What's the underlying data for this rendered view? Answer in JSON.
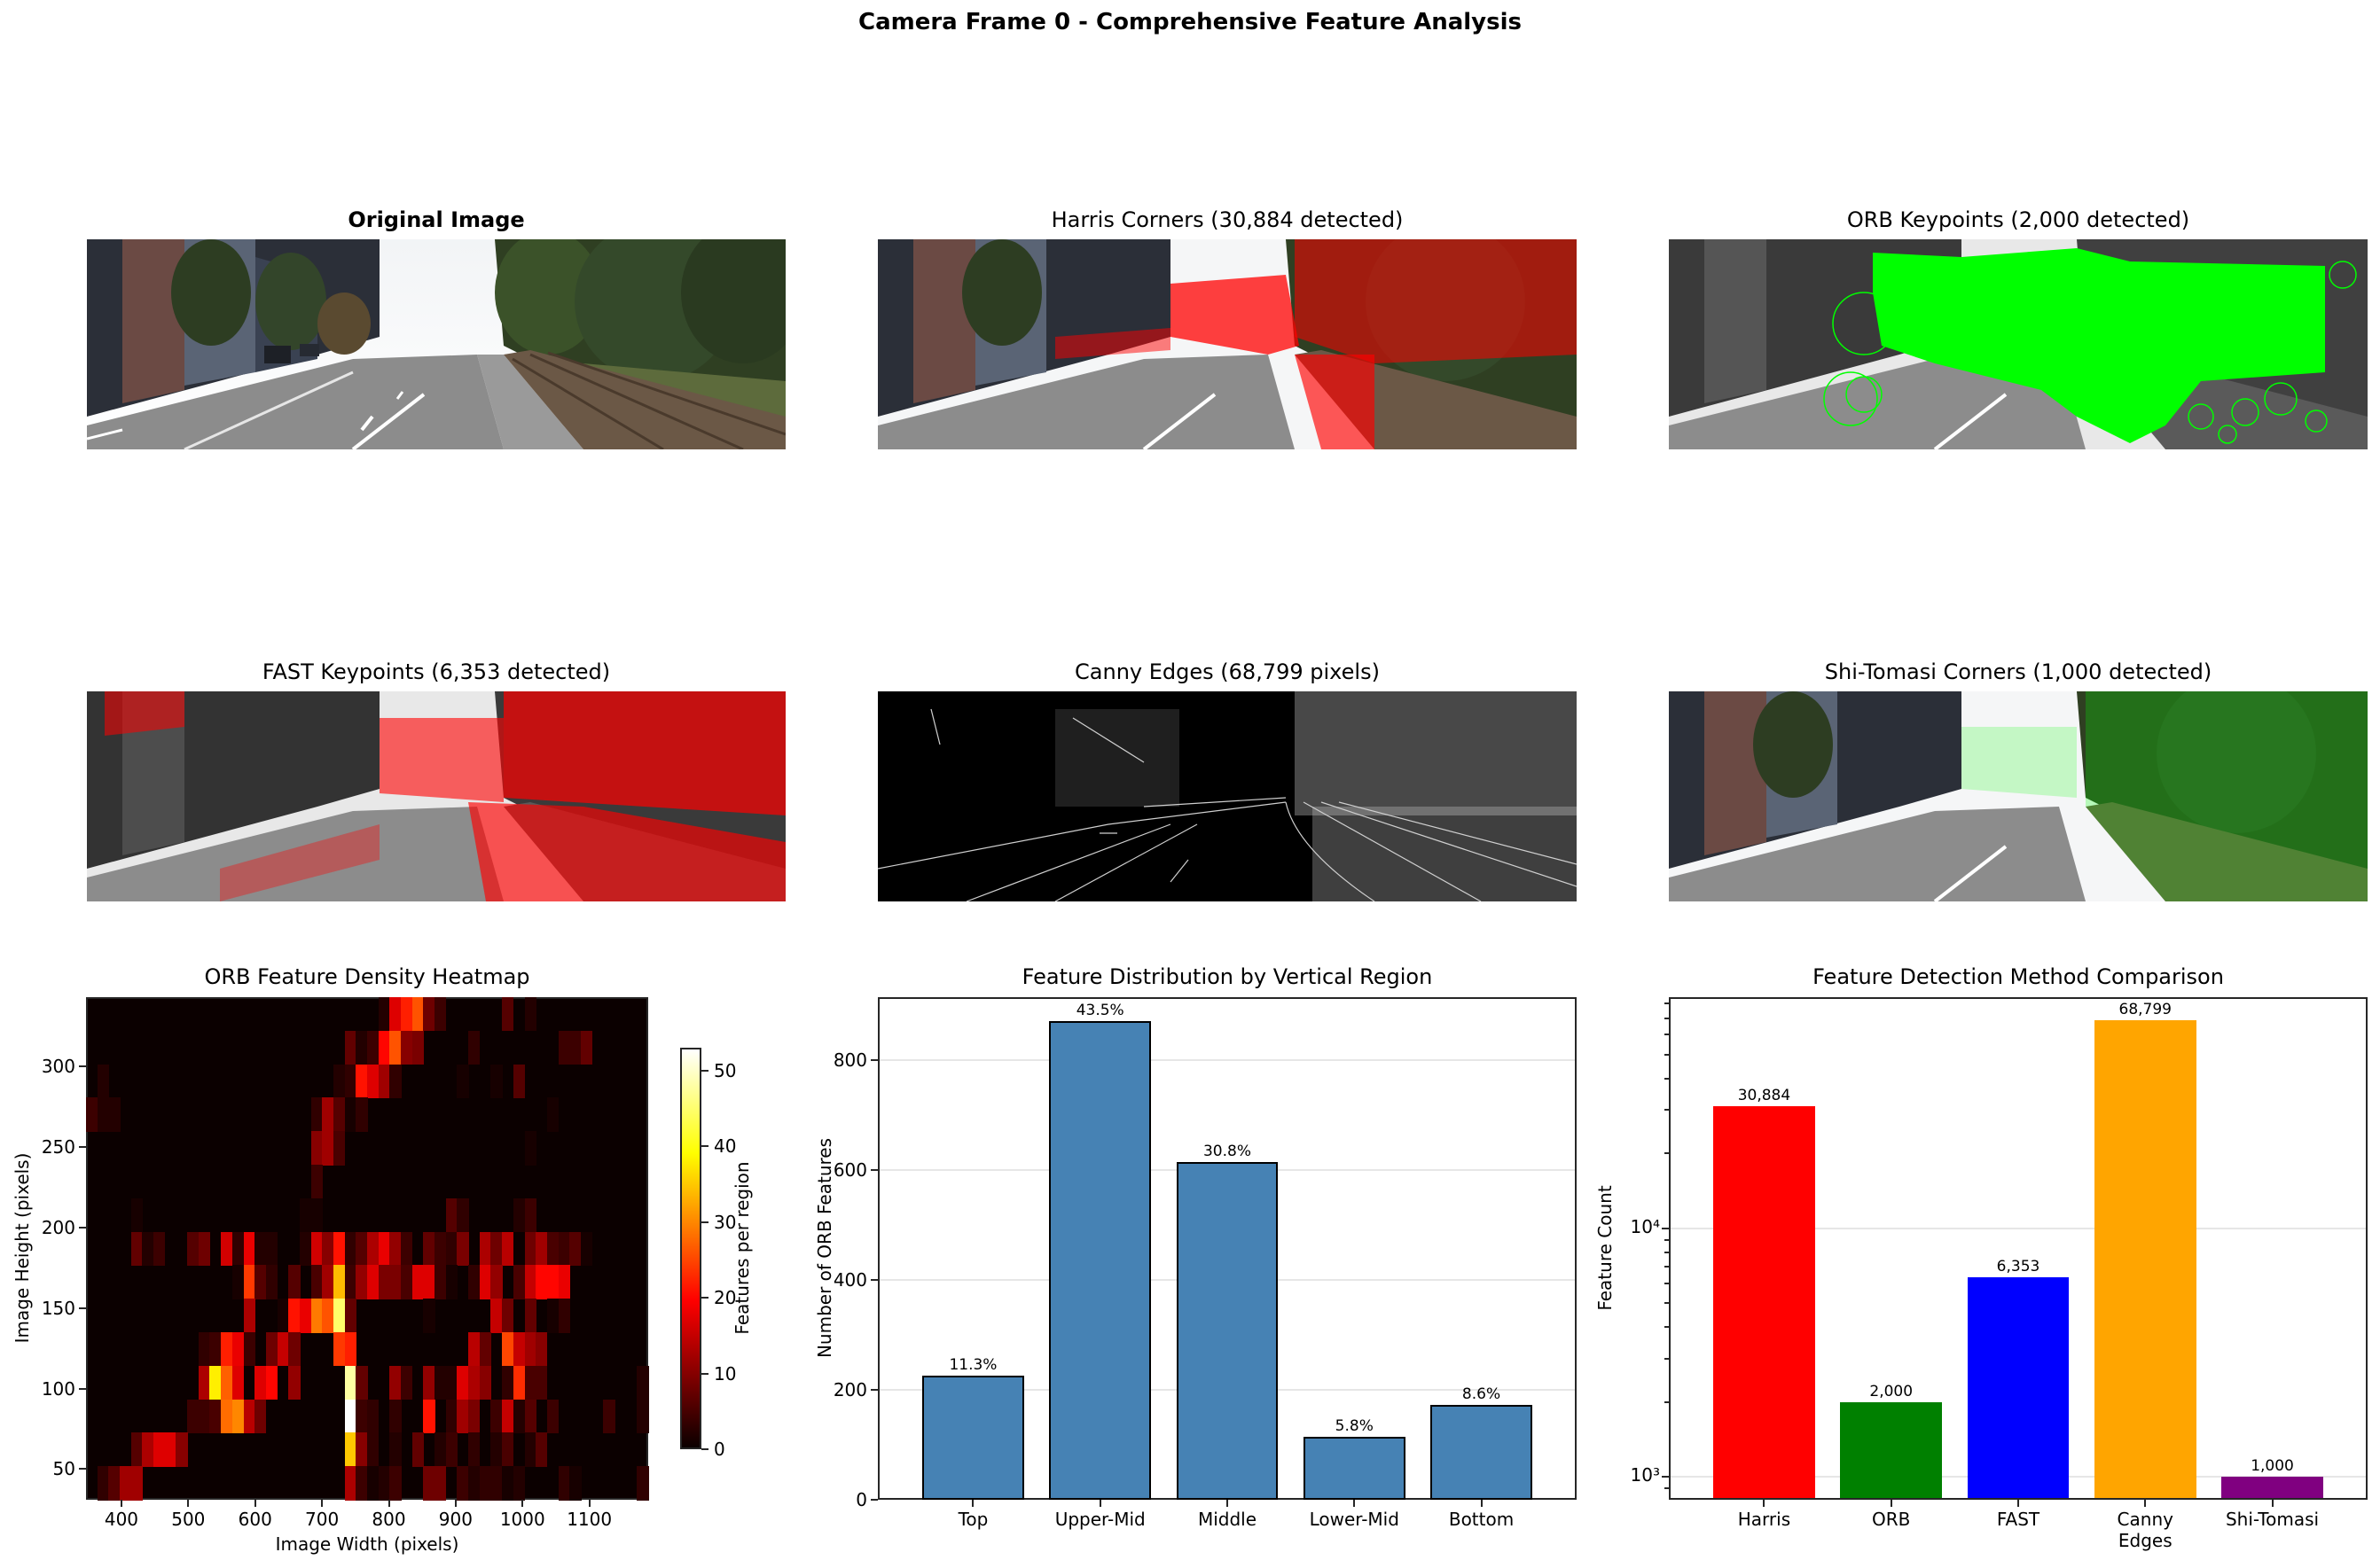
{
  "figure": {
    "suptitle": "Camera Frame 0 - Comprehensive Feature Analysis"
  },
  "image_panels": [
    {
      "title": "Original Image",
      "bold": true,
      "kind": "original"
    },
    {
      "title": "Harris Corners (30,884 detected)",
      "bold": false,
      "kind": "harris",
      "marker_color": "#ff0000"
    },
    {
      "title": "ORB Keypoints (2,000 detected)",
      "bold": false,
      "kind": "orb",
      "marker_color": "#00ff00"
    },
    {
      "title": "FAST Keypoints (6,353 detected)",
      "bold": false,
      "kind": "fast",
      "marker_color": "#ff0000"
    },
    {
      "title": "Canny Edges (68,799 pixels)",
      "bold": false,
      "kind": "canny",
      "marker_color": "#ffffff"
    },
    {
      "title": "Shi-Tomasi Corners (1,000 detected)",
      "bold": false,
      "kind": "shitomasi",
      "marker_color": "#00ff00"
    }
  ],
  "chart_data": [
    {
      "type": "heatmap",
      "title": "ORB Feature Density Heatmap",
      "xlabel": "Image Width (pixels)",
      "ylabel": "Image Height (pixels)",
      "xlim": [
        347,
        1188
      ],
      "ylim": [
        31,
        343
      ],
      "xticks": [
        400,
        500,
        600,
        700,
        800,
        900,
        1000,
        1100
      ],
      "yticks": [
        50,
        100,
        150,
        200,
        250,
        300
      ],
      "colormap": "hot",
      "colorbar": {
        "label": "Features per region",
        "ticks": [
          0,
          10,
          20,
          30,
          40,
          50
        ],
        "vmin": 0,
        "vmax": 53
      },
      "grid_shape": [
        15,
        50
      ],
      "cells_note": "rows top-to-bottom, sparse [row, col, value]",
      "cells": [
        [
          0,
          26,
          2
        ],
        [
          0,
          27,
          17
        ],
        [
          0,
          28,
          22
        ],
        [
          0,
          29,
          26
        ],
        [
          0,
          30,
          8
        ],
        [
          0,
          31,
          4
        ],
        [
          0,
          37,
          6
        ],
        [
          0,
          39,
          2
        ],
        [
          1,
          23,
          7
        ],
        [
          1,
          24,
          2
        ],
        [
          1,
          25,
          4
        ],
        [
          1,
          26,
          20
        ],
        [
          1,
          27,
          26
        ],
        [
          1,
          28,
          10
        ],
        [
          1,
          29,
          9
        ],
        [
          1,
          34,
          3
        ],
        [
          1,
          42,
          4
        ],
        [
          1,
          43,
          4
        ],
        [
          1,
          44,
          7
        ],
        [
          2,
          1,
          2
        ],
        [
          2,
          22,
          2
        ],
        [
          2,
          23,
          3
        ],
        [
          2,
          24,
          21
        ],
        [
          2,
          25,
          17
        ],
        [
          2,
          26,
          12
        ],
        [
          2,
          27,
          3
        ],
        [
          2,
          33,
          1
        ],
        [
          2,
          36,
          1
        ],
        [
          2,
          38,
          6
        ],
        [
          3,
          0,
          4
        ],
        [
          3,
          1,
          2
        ],
        [
          3,
          2,
          2
        ],
        [
          3,
          20,
          3
        ],
        [
          3,
          21,
          12
        ],
        [
          3,
          22,
          6
        ],
        [
          3,
          23,
          1
        ],
        [
          3,
          24,
          3
        ],
        [
          3,
          41,
          1
        ],
        [
          4,
          20,
          10
        ],
        [
          4,
          21,
          12
        ],
        [
          4,
          22,
          5
        ],
        [
          4,
          39,
          1
        ],
        [
          5,
          20,
          4
        ],
        [
          6,
          4,
          1
        ],
        [
          6,
          19,
          1
        ],
        [
          6,
          20,
          1
        ],
        [
          6,
          32,
          6
        ],
        [
          6,
          33,
          3
        ],
        [
          6,
          38,
          2
        ],
        [
          6,
          39,
          4
        ],
        [
          7,
          4,
          7
        ],
        [
          7,
          5,
          2
        ],
        [
          7,
          6,
          4
        ],
        [
          7,
          9,
          6
        ],
        [
          7,
          10,
          8
        ],
        [
          7,
          12,
          16
        ],
        [
          7,
          13,
          3
        ],
        [
          7,
          14,
          18
        ],
        [
          7,
          15,
          2
        ],
        [
          7,
          16,
          2
        ],
        [
          7,
          19,
          2
        ],
        [
          7,
          20,
          16
        ],
        [
          7,
          21,
          10
        ],
        [
          7,
          22,
          21
        ],
        [
          7,
          23,
          3
        ],
        [
          7,
          24,
          6
        ],
        [
          7,
          25,
          13
        ],
        [
          7,
          26,
          18
        ],
        [
          7,
          27,
          11
        ],
        [
          7,
          28,
          4
        ],
        [
          7,
          30,
          7
        ],
        [
          7,
          31,
          4
        ],
        [
          7,
          32,
          3
        ],
        [
          7,
          33,
          9
        ],
        [
          7,
          35,
          13
        ],
        [
          7,
          36,
          8
        ],
        [
          7,
          37,
          14
        ],
        [
          7,
          39,
          8
        ],
        [
          7,
          40,
          12
        ],
        [
          7,
          41,
          5
        ],
        [
          7,
          42,
          4
        ],
        [
          7,
          43,
          6
        ],
        [
          7,
          44,
          1
        ],
        [
          8,
          13,
          1
        ],
        [
          8,
          14,
          24
        ],
        [
          8,
          15,
          6
        ],
        [
          8,
          16,
          3
        ],
        [
          8,
          18,
          6
        ],
        [
          8,
          20,
          5
        ],
        [
          8,
          21,
          12
        ],
        [
          8,
          22,
          34
        ],
        [
          8,
          23,
          4
        ],
        [
          8,
          24,
          11
        ],
        [
          8,
          25,
          17
        ],
        [
          8,
          26,
          9
        ],
        [
          8,
          27,
          9
        ],
        [
          8,
          28,
          5
        ],
        [
          8,
          29,
          17
        ],
        [
          8,
          30,
          17
        ],
        [
          8,
          31,
          4
        ],
        [
          8,
          32,
          1
        ],
        [
          8,
          34,
          3
        ],
        [
          8,
          35,
          17
        ],
        [
          8,
          36,
          11
        ],
        [
          8,
          38,
          5
        ],
        [
          8,
          39,
          15
        ],
        [
          8,
          40,
          20
        ],
        [
          8,
          41,
          20
        ],
        [
          8,
          42,
          18
        ],
        [
          9,
          14,
          13
        ],
        [
          9,
          17,
          1
        ],
        [
          9,
          18,
          21
        ],
        [
          9,
          19,
          18
        ],
        [
          9,
          20,
          29
        ],
        [
          9,
          21,
          26
        ],
        [
          9,
          22,
          45
        ],
        [
          9,
          23,
          7
        ],
        [
          9,
          30,
          1
        ],
        [
          9,
          36,
          15
        ],
        [
          9,
          37,
          8
        ],
        [
          9,
          39,
          7
        ],
        [
          9,
          41,
          1
        ],
        [
          9,
          42,
          3
        ],
        [
          10,
          10,
          3
        ],
        [
          10,
          11,
          4
        ],
        [
          10,
          12,
          22
        ],
        [
          10,
          13,
          18
        ],
        [
          10,
          14,
          4
        ],
        [
          10,
          16,
          8
        ],
        [
          10,
          17,
          15
        ],
        [
          10,
          18,
          8
        ],
        [
          10,
          22,
          24
        ],
        [
          10,
          23,
          22
        ],
        [
          10,
          34,
          14
        ],
        [
          10,
          35,
          7
        ],
        [
          10,
          37,
          25
        ],
        [
          10,
          38,
          15
        ],
        [
          10,
          39,
          12
        ],
        [
          10,
          40,
          10
        ],
        [
          11,
          10,
          13
        ],
        [
          11,
          11,
          38
        ],
        [
          11,
          12,
          27
        ],
        [
          11,
          13,
          17
        ],
        [
          11,
          15,
          17
        ],
        [
          11,
          16,
          20
        ],
        [
          11,
          18,
          11
        ],
        [
          11,
          23,
          48
        ],
        [
          11,
          24,
          7
        ],
        [
          11,
          27,
          11
        ],
        [
          11,
          28,
          4
        ],
        [
          11,
          30,
          11
        ],
        [
          11,
          31,
          2
        ],
        [
          11,
          32,
          2
        ],
        [
          11,
          33,
          17
        ],
        [
          11,
          34,
          13
        ],
        [
          11,
          35,
          10
        ],
        [
          11,
          37,
          3
        ],
        [
          11,
          38,
          23
        ],
        [
          11,
          39,
          5
        ],
        [
          11,
          40,
          5
        ],
        [
          11,
          49,
          2
        ],
        [
          12,
          9,
          4
        ],
        [
          12,
          10,
          4
        ],
        [
          12,
          11,
          5
        ],
        [
          12,
          12,
          28
        ],
        [
          12,
          13,
          30
        ],
        [
          12,
          14,
          14
        ],
        [
          12,
          15,
          8
        ],
        [
          12,
          23,
          53
        ],
        [
          12,
          24,
          4
        ],
        [
          12,
          25,
          3
        ],
        [
          12,
          27,
          3
        ],
        [
          12,
          30,
          21
        ],
        [
          12,
          32,
          3
        ],
        [
          12,
          33,
          12
        ],
        [
          12,
          34,
          9
        ],
        [
          12,
          36,
          4
        ],
        [
          12,
          37,
          15
        ],
        [
          12,
          38,
          2
        ],
        [
          12,
          39,
          6
        ],
        [
          12,
          41,
          4
        ],
        [
          12,
          46,
          4
        ],
        [
          12,
          49,
          2
        ],
        [
          13,
          4,
          6
        ],
        [
          13,
          5,
          13
        ],
        [
          13,
          6,
          17
        ],
        [
          13,
          7,
          17
        ],
        [
          13,
          8,
          10
        ],
        [
          13,
          23,
          35
        ],
        [
          13,
          24,
          10
        ],
        [
          13,
          25,
          3
        ],
        [
          13,
          27,
          2
        ],
        [
          13,
          29,
          7
        ],
        [
          13,
          31,
          2
        ],
        [
          13,
          32,
          4
        ],
        [
          13,
          34,
          3
        ],
        [
          13,
          36,
          2
        ],
        [
          13,
          37,
          5
        ],
        [
          13,
          39,
          2
        ],
        [
          13,
          40,
          6
        ],
        [
          14,
          1,
          3
        ],
        [
          14,
          2,
          6
        ],
        [
          14,
          3,
          12
        ],
        [
          14,
          4,
          12
        ],
        [
          14,
          23,
          13
        ],
        [
          14,
          24,
          4
        ],
        [
          14,
          25,
          1
        ],
        [
          14,
          26,
          2
        ],
        [
          14,
          27,
          4
        ],
        [
          14,
          30,
          8
        ],
        [
          14,
          31,
          8
        ],
        [
          14,
          33,
          4
        ],
        [
          14,
          34,
          2
        ],
        [
          14,
          35,
          3
        ],
        [
          14,
          36,
          3
        ],
        [
          14,
          37,
          1
        ],
        [
          14,
          38,
          2
        ],
        [
          14,
          42,
          3
        ],
        [
          14,
          43,
          1
        ],
        [
          14,
          49,
          3
        ]
      ]
    },
    {
      "type": "bar",
      "title": "Feature Distribution by Vertical Region",
      "xlabel": "",
      "ylabel": "Number of ORB Features",
      "categories": [
        "Top",
        "Upper-Mid",
        "Middle",
        "Lower-Mid",
        "Bottom"
      ],
      "values": [
        226,
        871,
        615,
        115,
        173
      ],
      "bar_labels": [
        "11.3%",
        "43.5%",
        "30.8%",
        "5.8%",
        "8.6%"
      ],
      "color": "#4682b4",
      "ylim": [
        0,
        915
      ],
      "yticks": [
        0,
        200,
        400,
        600,
        800
      ],
      "grid": "y"
    },
    {
      "type": "bar",
      "title": "Feature Detection Method Comparison",
      "xlabel": "",
      "ylabel": "Feature Count",
      "yscale": "log",
      "categories": [
        "Harris",
        "ORB",
        "FAST",
        "Canny\nEdges",
        "Shi-Tomasi"
      ],
      "values": [
        30884,
        2000,
        6353,
        68799,
        1000
      ],
      "bar_labels": [
        "30,884",
        "2,000",
        "6,353",
        "68,799",
        "1,000"
      ],
      "colors": [
        "#ff0000",
        "#008000",
        "#0000ff",
        "#ffa500",
        "#800080"
      ],
      "ylim": [
        811,
        84900
      ],
      "yticks_major": [
        "10³",
        "10⁴"
      ],
      "grid": "y"
    }
  ]
}
